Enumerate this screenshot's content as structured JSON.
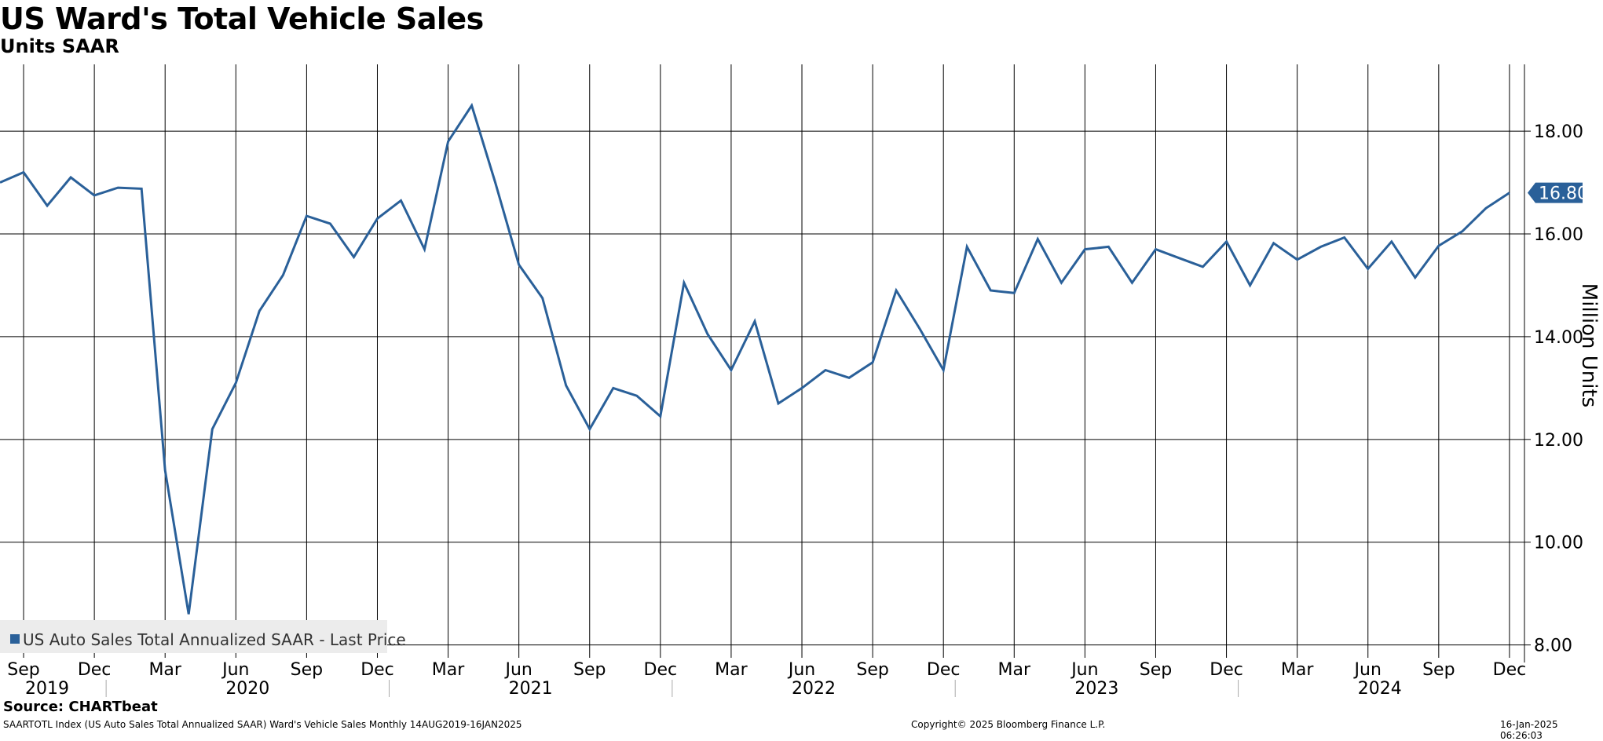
{
  "chart_title": "US Ward's Total Vehicle Sales",
  "chart_subtitle": "Units SAAR",
  "footer": {
    "source": "Source: CHARTbeat",
    "description": "SAARTOTL Index (US Auto Sales Total Annualized SAAR) Ward's Vehicle Sales  Monthly 14AUG2019-16JAN2025",
    "copyright": "Copyright© 2025 Bloomberg Finance L.P.",
    "timestamp": "16-Jan-2025 06:26:03"
  },
  "colors": {
    "line": "#2a6099",
    "grid": "#000000",
    "legend_bg": "#ececec",
    "last_value_bg": "#2a6099"
  },
  "chart_data": {
    "type": "line",
    "title": "US Ward's Total Vehicle Sales",
    "subtitle": "Units SAAR",
    "ylabel": "Million Units",
    "ylim": [
      7.75,
      19.3
    ],
    "yticks": [
      "8.00",
      "10.00",
      "12.00",
      "14.00",
      "16.00",
      "18.00"
    ],
    "grid": true,
    "legend_position": "bottom-left",
    "last_value_label": "16.80",
    "x_month_ticks": [
      "Sep",
      "Dec",
      "Mar",
      "Jun",
      "Sep",
      "Dec",
      "Mar",
      "Jun",
      "Sep",
      "Dec",
      "Mar",
      "Jun",
      "Sep",
      "Dec",
      "Mar",
      "Jun",
      "Sep",
      "Dec",
      "Mar",
      "Jun",
      "Sep",
      "Dec"
    ],
    "x_month_tick_index": [
      1,
      4,
      7,
      10,
      13,
      16,
      19,
      22,
      25,
      28,
      31,
      34,
      37,
      40,
      43,
      46,
      49,
      52,
      55,
      58,
      61,
      64
    ],
    "x_year_labels": [
      {
        "label": "2019",
        "start": 0,
        "end": 4
      },
      {
        "label": "2020",
        "start": 5,
        "end": 16
      },
      {
        "label": "2021",
        "start": 17,
        "end": 28
      },
      {
        "label": "2022",
        "start": 29,
        "end": 40
      },
      {
        "label": "2023",
        "start": 41,
        "end": 52
      },
      {
        "label": "2024",
        "start": 53,
        "end": 64
      }
    ],
    "series": [
      {
        "name": "US Auto Sales Total Annualized SAAR - Last Price",
        "x": [
          "2019-08",
          "2019-09",
          "2019-10",
          "2019-11",
          "2019-12",
          "2020-01",
          "2020-02",
          "2020-03",
          "2020-04",
          "2020-05",
          "2020-06",
          "2020-07",
          "2020-08",
          "2020-09",
          "2020-10",
          "2020-11",
          "2020-12",
          "2021-01",
          "2021-02",
          "2021-03",
          "2021-04",
          "2021-05",
          "2021-06",
          "2021-07",
          "2021-08",
          "2021-09",
          "2021-10",
          "2021-11",
          "2021-12",
          "2022-01",
          "2022-02",
          "2022-03",
          "2022-04",
          "2022-05",
          "2022-06",
          "2022-07",
          "2022-08",
          "2022-09",
          "2022-10",
          "2022-11",
          "2022-12",
          "2023-01",
          "2023-02",
          "2023-03",
          "2023-04",
          "2023-05",
          "2023-06",
          "2023-07",
          "2023-08",
          "2023-09",
          "2023-10",
          "2023-11",
          "2023-12",
          "2024-01",
          "2024-02",
          "2024-03",
          "2024-04",
          "2024-05",
          "2024-06",
          "2024-07",
          "2024-08",
          "2024-09",
          "2024-10",
          "2024-11",
          "2024-12"
        ],
        "values": [
          17.0,
          17.2,
          16.55,
          17.1,
          16.75,
          16.9,
          16.88,
          11.4,
          8.6,
          12.2,
          13.1,
          14.5,
          15.2,
          16.35,
          16.2,
          15.55,
          16.3,
          16.65,
          15.7,
          17.8,
          18.5,
          17.0,
          15.4,
          14.75,
          13.05,
          12.2,
          13.0,
          12.85,
          12.45,
          15.05,
          14.05,
          13.35,
          14.3,
          12.7,
          13.0,
          13.35,
          13.2,
          13.5,
          14.9,
          14.15,
          13.35,
          15.75,
          14.9,
          14.85,
          15.9,
          15.05,
          15.7,
          15.75,
          15.05,
          15.7,
          15.53,
          15.36,
          15.85,
          15.0,
          15.82,
          15.5,
          15.75,
          15.93,
          15.32,
          15.85,
          15.15,
          15.77,
          16.05,
          16.5,
          16.8
        ]
      }
    ]
  }
}
